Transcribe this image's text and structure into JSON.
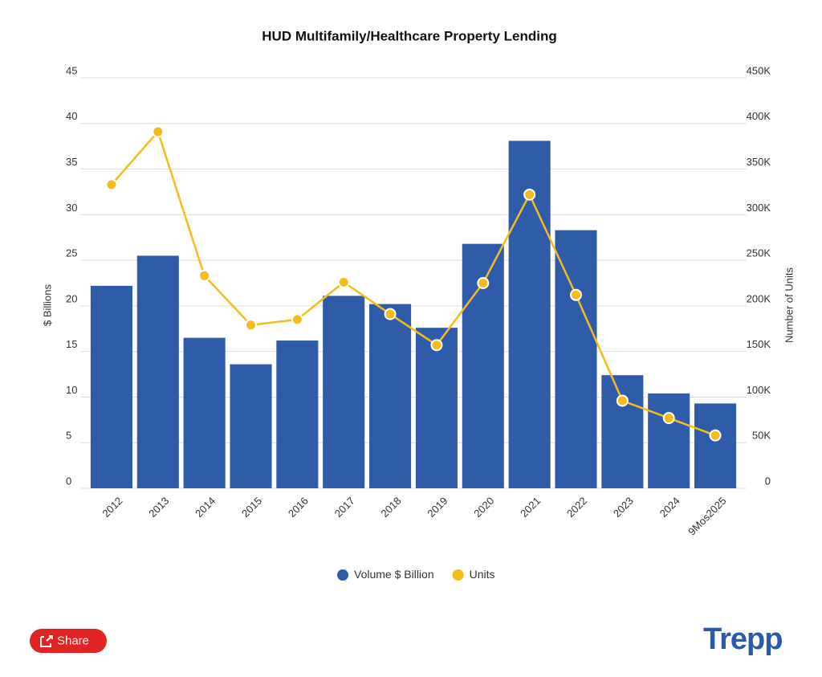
{
  "chart_data": {
    "type": "bar-line",
    "title": "HUD Multifamily/Healthcare Property Lending",
    "y_label": "$ Billions",
    "y2_label": "Number of Units",
    "categories": [
      "2012",
      "2013",
      "2014",
      "2015",
      "2016",
      "2017",
      "2018",
      "2019",
      "2020",
      "2021",
      "2022",
      "2023",
      "2024",
      "9Mos2025"
    ],
    "series": [
      {
        "name": "Volume $ Billion",
        "type": "bar",
        "color": "#2e5ca8",
        "values": [
          22.2,
          25.5,
          16.5,
          13.6,
          16.2,
          21.1,
          20.2,
          17.6,
          26.8,
          38.1,
          28.3,
          12.4,
          10.4,
          9.3
        ]
      },
      {
        "name": "Units",
        "type": "line",
        "axis": "y2",
        "color": "#f4bc1c",
        "values": [
          333000,
          391000,
          233000,
          179000,
          185000,
          226000,
          191000,
          157000,
          225000,
          322000,
          212000,
          96000,
          77000,
          58000
        ]
      }
    ],
    "ylim": [
      0,
      45
    ],
    "yticks": [
      0,
      5,
      10,
      15,
      20,
      25,
      30,
      35,
      40,
      45
    ],
    "y2lim": [
      0,
      450000
    ],
    "y2ticks": [
      {
        "value": 0,
        "label": "0"
      },
      {
        "value": 50000,
        "label": "50K"
      },
      {
        "value": 100000,
        "label": "100K"
      },
      {
        "value": 150000,
        "label": "150K"
      },
      {
        "value": 200000,
        "label": "200K"
      },
      {
        "value": 250000,
        "label": "250K"
      },
      {
        "value": 300000,
        "label": "300K"
      },
      {
        "value": 350000,
        "label": "350K"
      },
      {
        "value": 400000,
        "label": "400K"
      },
      {
        "value": 450000,
        "label": "450K"
      }
    ],
    "grid": true
  },
  "share_button": "Share",
  "brand": "Trepp"
}
